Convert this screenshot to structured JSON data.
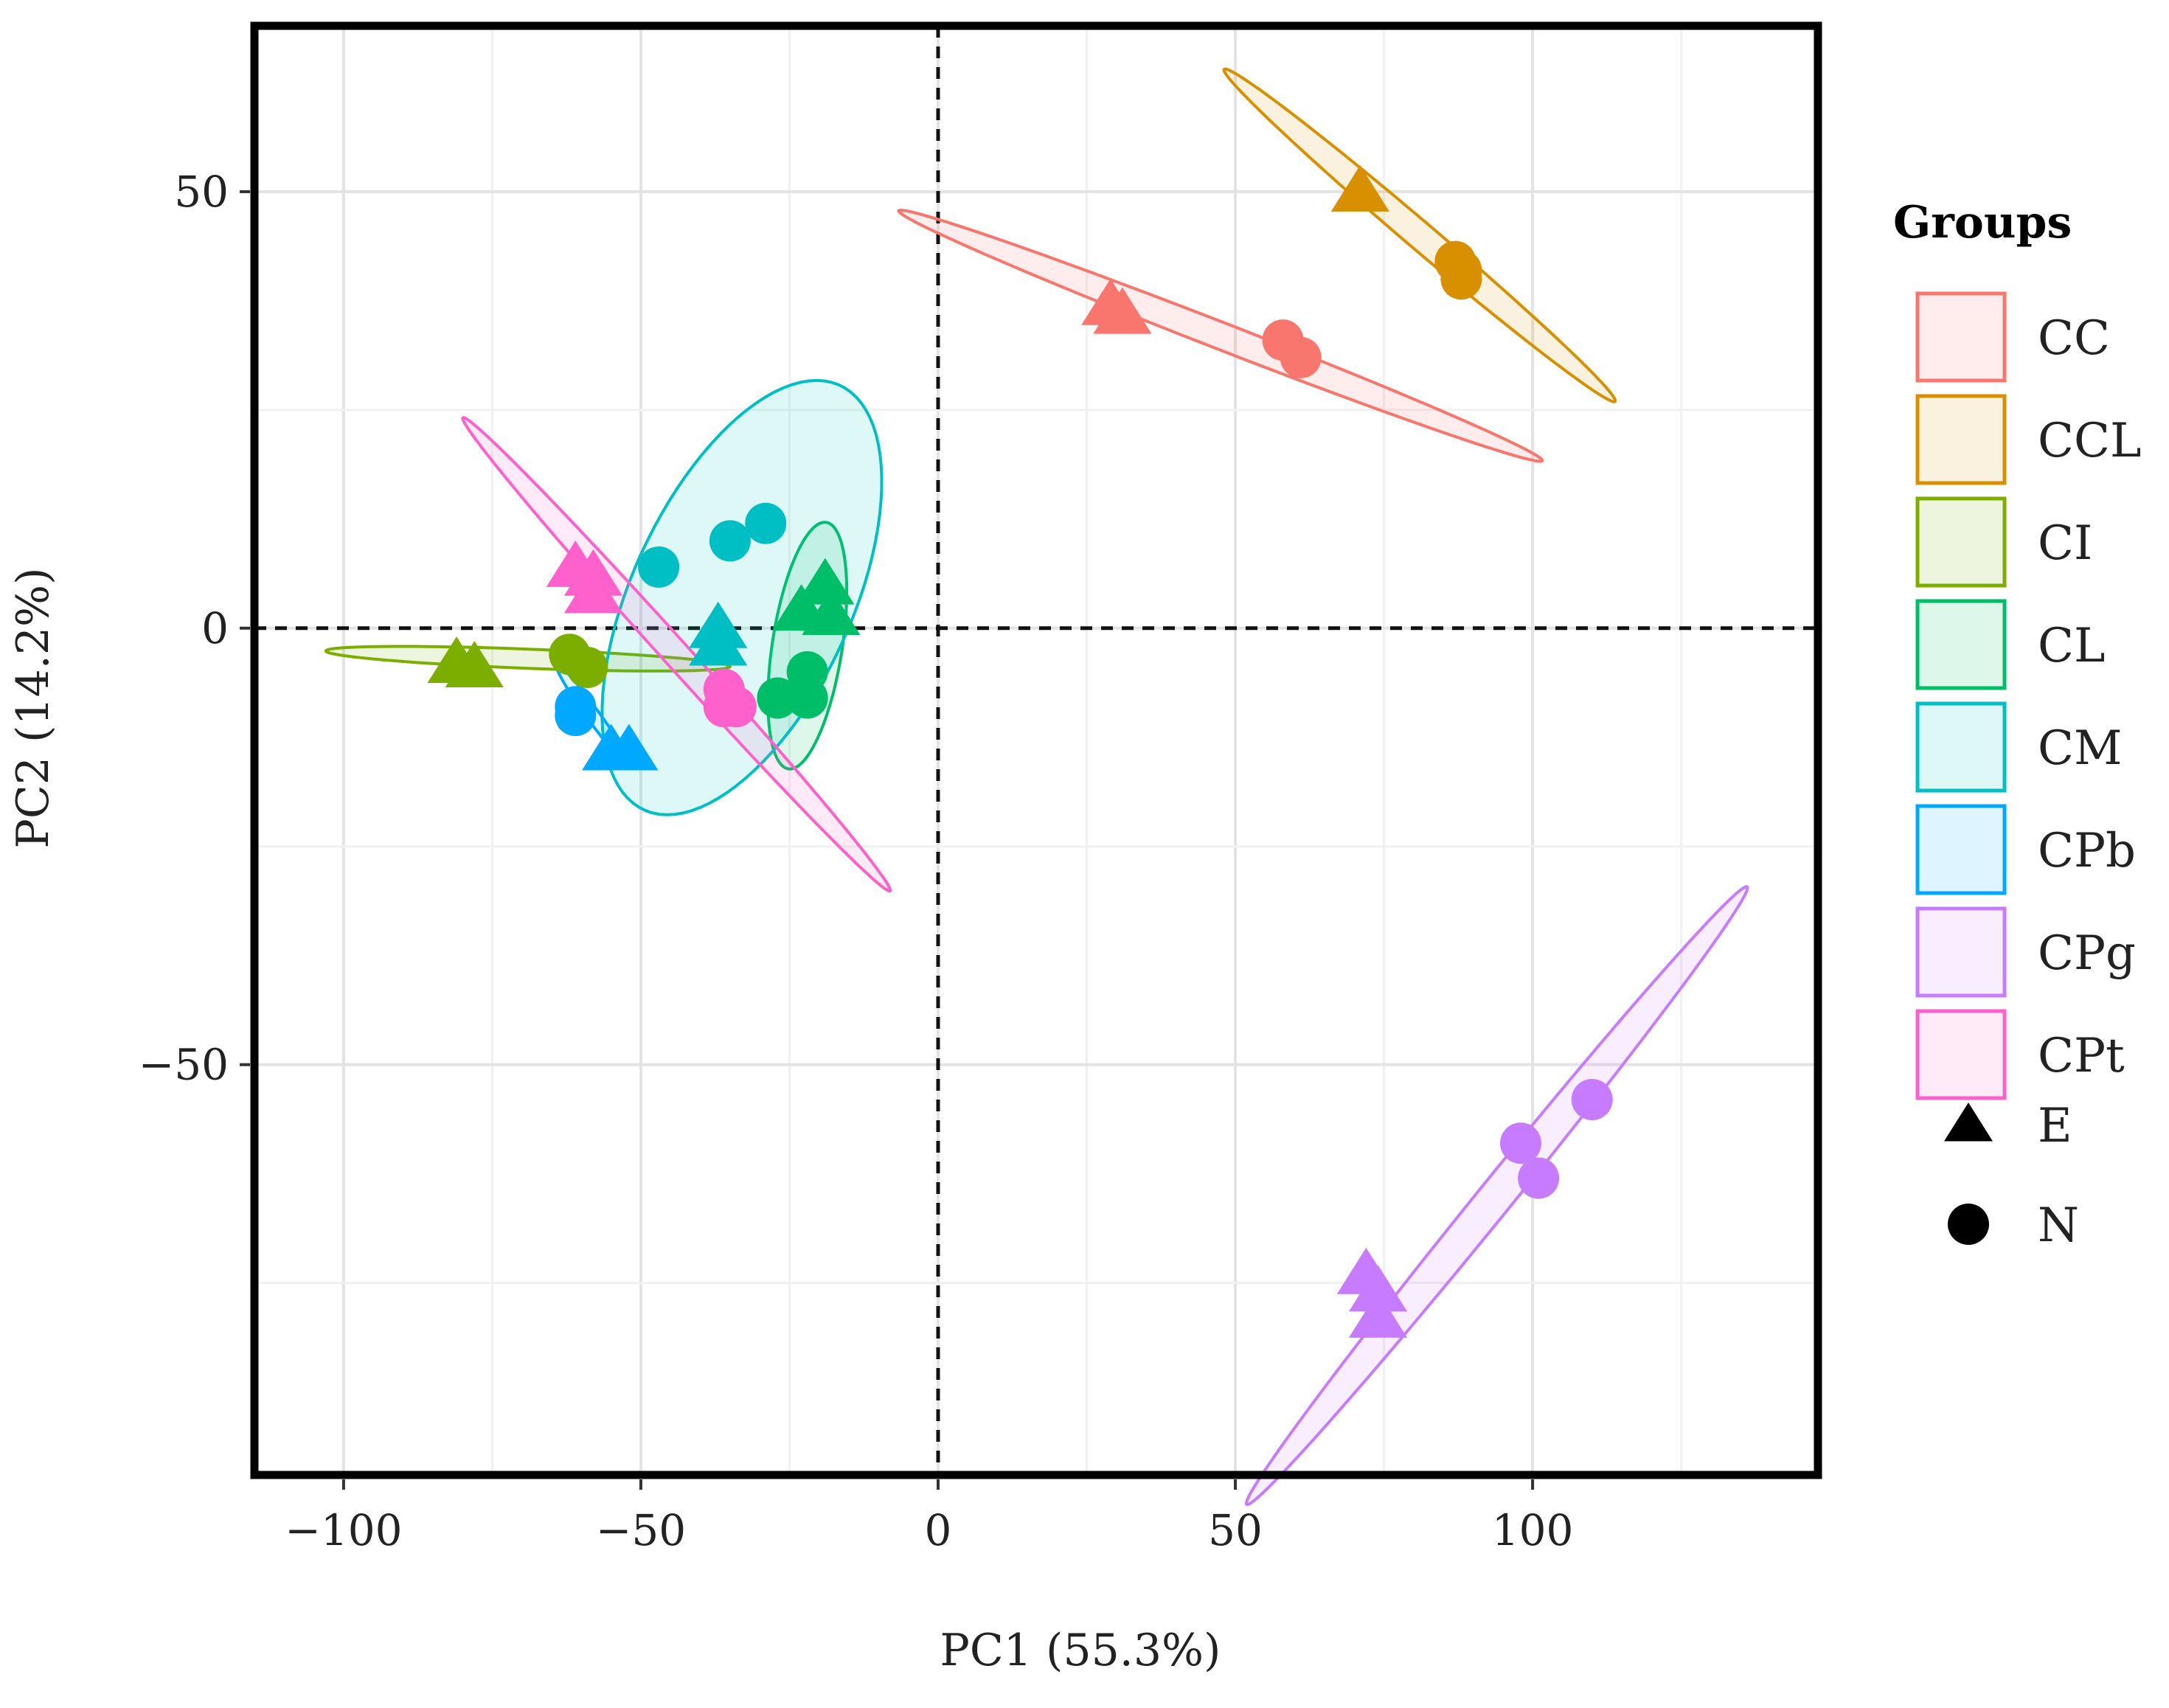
{
  "chart_data": {
    "type": "scatter",
    "xlabel": "PC1 (55.3%)",
    "ylabel": "PC2 (14.2%)",
    "xlim": [
      -115,
      148
    ],
    "ylim": [
      -97,
      69
    ],
    "x_ticks": [
      -100,
      -50,
      0,
      50,
      100
    ],
    "y_ticks": [
      -50,
      0,
      50
    ],
    "x_tick_labels": [
      "−100",
      "−50",
      "0",
      "50",
      "100"
    ],
    "y_tick_labels": [
      "−50",
      "0",
      "50"
    ],
    "grid": true,
    "reference_lines": {
      "x": 0,
      "y": 0,
      "style": "dashed"
    },
    "legend": {
      "title": "Groups",
      "position": "right",
      "shape_entries": [
        {
          "shape": "triangle",
          "label": "E"
        },
        {
          "shape": "circle",
          "label": "N"
        }
      ]
    },
    "series": [
      {
        "name": "CC",
        "color": "#F8766D",
        "ellipse": {
          "cx": 47.5,
          "cy": 33.5,
          "rx": 56,
          "ry": 1.6,
          "angle_deg": -14.8
        },
        "points": [
          {
            "x": 29,
            "y": 37,
            "shape": "triangle"
          },
          {
            "x": 31,
            "y": 36,
            "shape": "triangle"
          },
          {
            "x": 58,
            "y": 33,
            "shape": "circle"
          },
          {
            "x": 61,
            "y": 31,
            "shape": "circle"
          }
        ]
      },
      {
        "name": "CCL",
        "color": "#D89000",
        "ellipse": {
          "cx": 81,
          "cy": 45,
          "rx": 38,
          "ry": 1.8,
          "angle_deg": -30
        },
        "points": [
          {
            "x": 71,
            "y": 50,
            "shape": "triangle"
          },
          {
            "x": 87,
            "y": 42,
            "shape": "circle"
          },
          {
            "x": 88,
            "y": 40,
            "shape": "circle"
          },
          {
            "x": 88,
            "y": 41,
            "shape": "circle"
          }
        ]
      },
      {
        "name": "CI",
        "color": "#7CAE00",
        "ellipse": {
          "cx": -69,
          "cy": -3.5,
          "rx": 34,
          "ry": 1.1,
          "angle_deg": -1.5
        },
        "points": [
          {
            "x": -81,
            "y": -4,
            "shape": "triangle"
          },
          {
            "x": -78,
            "y": -4.5,
            "shape": "triangle"
          },
          {
            "x": -62,
            "y": -3,
            "shape": "circle"
          },
          {
            "x": -59,
            "y": -4.5,
            "shape": "circle"
          }
        ]
      },
      {
        "name": "CL",
        "color": "#00BE67",
        "ellipse": {
          "cx": -22,
          "cy": -2,
          "rx": 14.5,
          "ry": 5.8,
          "angle_deg": 76
        },
        "points": [
          {
            "x": -19,
            "y": 5,
            "shape": "triangle"
          },
          {
            "x": -23,
            "y": 2,
            "shape": "triangle"
          },
          {
            "x": -18,
            "y": 1.5,
            "shape": "triangle"
          },
          {
            "x": -22,
            "y": -5,
            "shape": "circle"
          },
          {
            "x": -22,
            "y": -8,
            "shape": "circle"
          },
          {
            "x": -27,
            "y": -8,
            "shape": "circle"
          }
        ]
      },
      {
        "name": "CM",
        "color": "#00BFC4",
        "ellipse": {
          "cx": -33,
          "cy": 3.5,
          "rx": 30,
          "ry": 16.5,
          "angle_deg": 48
        },
        "points": [
          {
            "x": -47,
            "y": 7,
            "shape": "circle"
          },
          {
            "x": -35,
            "y": 10,
            "shape": "circle"
          },
          {
            "x": -29,
            "y": 12,
            "shape": "circle"
          },
          {
            "x": -37,
            "y": 0,
            "shape": "triangle"
          },
          {
            "x": -37,
            "y": -2,
            "shape": "triangle"
          }
        ]
      },
      {
        "name": "CPb",
        "color": "#00A9FF",
        "ellipse": {
          "cx": -58,
          "cy": -10,
          "rx": 8.5,
          "ry": 0.9,
          "angle_deg": -43
        },
        "points": [
          {
            "x": -61,
            "y": -9,
            "shape": "circle"
          },
          {
            "x": -61,
            "y": -10,
            "shape": "circle"
          },
          {
            "x": -55,
            "y": -14,
            "shape": "triangle"
          },
          {
            "x": -52,
            "y": -14,
            "shape": "triangle"
          }
        ]
      },
      {
        "name": "CPg",
        "color": "#C77CFF",
        "ellipse": {
          "cx": 94,
          "cy": -65,
          "rx": 55,
          "ry": 2.4,
          "angle_deg": 40
        },
        "points": [
          {
            "x": 110,
            "y": -54,
            "shape": "circle"
          },
          {
            "x": 98,
            "y": -59,
            "shape": "circle"
          },
          {
            "x": 101,
            "y": -63,
            "shape": "circle"
          },
          {
            "x": 72,
            "y": -74,
            "shape": "triangle"
          },
          {
            "x": 74,
            "y": -76,
            "shape": "triangle"
          },
          {
            "x": 74,
            "y": -79,
            "shape": "triangle"
          }
        ]
      },
      {
        "name": "CPt",
        "color": "#FF61CC",
        "ellipse": {
          "cx": -44,
          "cy": -3,
          "rx": 45,
          "ry": 1.8,
          "angle_deg": -37
        },
        "points": [
          {
            "x": -61,
            "y": 7,
            "shape": "triangle"
          },
          {
            "x": -58,
            "y": 6,
            "shape": "triangle"
          },
          {
            "x": -58,
            "y": 4,
            "shape": "triangle"
          },
          {
            "x": -36,
            "y": -7,
            "shape": "circle"
          },
          {
            "x": -36,
            "y": -9,
            "shape": "circle"
          },
          {
            "x": -34,
            "y": -9,
            "shape": "circle"
          }
        ]
      }
    ]
  }
}
